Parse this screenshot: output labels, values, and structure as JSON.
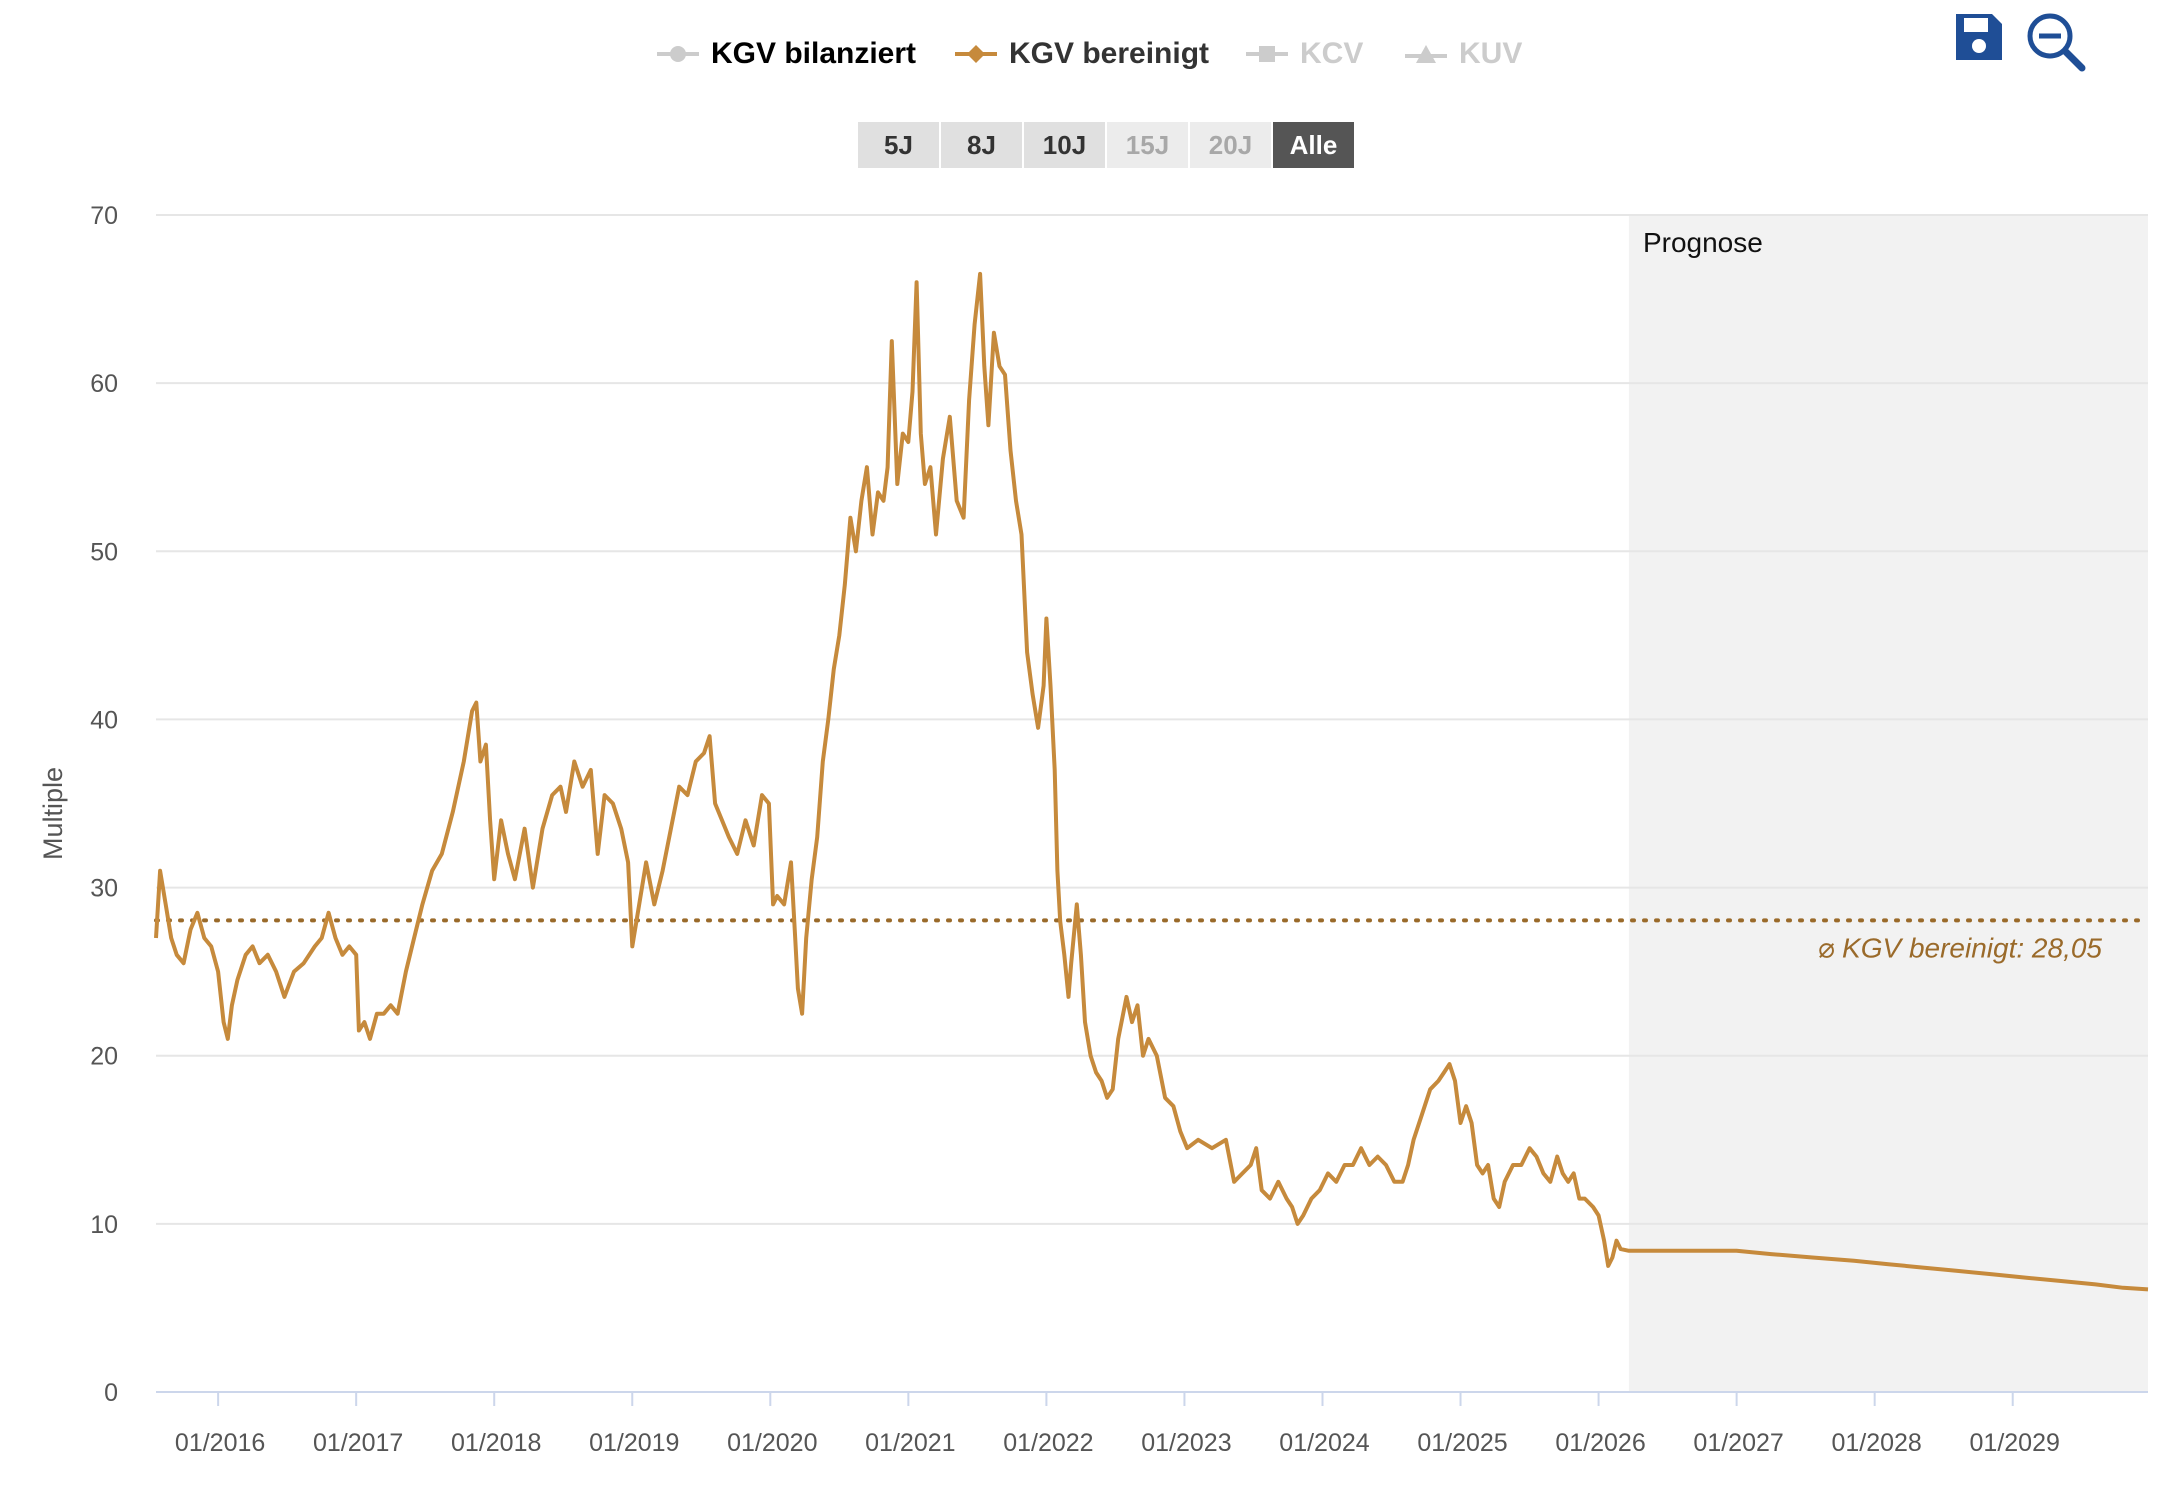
{
  "legend": [
    {
      "label": "KGV bilanziert",
      "state": "inactive",
      "icon": "circle-marker-icon"
    },
    {
      "label": "KGV bereinigt",
      "state": "active",
      "icon": "diamond-marker-icon"
    },
    {
      "label": "KCV",
      "state": "inactive",
      "icon": "square-marker-icon"
    },
    {
      "label": "KUV",
      "state": "inactive",
      "icon": "triangle-marker-icon"
    }
  ],
  "toolbar": {
    "save_icon": "floppy-disk-icon",
    "zoom_icon": "zoom-out-icon"
  },
  "range_buttons": [
    {
      "label": "5J",
      "state": "normal"
    },
    {
      "label": "8J",
      "state": "normal"
    },
    {
      "label": "10J",
      "state": "normal"
    },
    {
      "label": "15J",
      "state": "disabled"
    },
    {
      "label": "20J",
      "state": "disabled"
    },
    {
      "label": "Alle",
      "state": "selected"
    }
  ],
  "colors": {
    "series": "#c68a3c",
    "average": "#9a6a2a",
    "forecast_bg": "#f2f2f2",
    "grid": "#e6e6e6",
    "axis_text": "#555555",
    "button_blue": "#1f4e96"
  },
  "chart_data": {
    "type": "line",
    "title": "",
    "xlabel": "",
    "ylabel": "Multiple",
    "ylim": [
      0,
      70
    ],
    "yticks": [
      0,
      10,
      20,
      30,
      40,
      50,
      60,
      70
    ],
    "xlim": [
      2015.55,
      2029.98
    ],
    "xticks": [
      {
        "value": 2016,
        "label": "01/2016"
      },
      {
        "value": 2017,
        "label": "01/2017"
      },
      {
        "value": 2018,
        "label": "01/2018"
      },
      {
        "value": 2019,
        "label": "01/2019"
      },
      {
        "value": 2020,
        "label": "01/2020"
      },
      {
        "value": 2021,
        "label": "01/2021"
      },
      {
        "value": 2022,
        "label": "01/2022"
      },
      {
        "value": 2023,
        "label": "01/2023"
      },
      {
        "value": 2024,
        "label": "01/2024"
      },
      {
        "value": 2025,
        "label": "01/2025"
      },
      {
        "value": 2026,
        "label": "01/2026"
      },
      {
        "value": 2027,
        "label": "01/2027"
      },
      {
        "value": 2028,
        "label": "01/2028"
      },
      {
        "value": 2029,
        "label": "01/2029"
      }
    ],
    "forecast": {
      "start": 2026.22,
      "label": "Prognose"
    },
    "average": {
      "value": 28.05,
      "label": "⌀ KGV bereinigt: 28,05"
    },
    "series": [
      {
        "name": "KGV bereinigt",
        "points": [
          [
            2015.55,
            27
          ],
          [
            2015.58,
            31
          ],
          [
            2015.62,
            29
          ],
          [
            2015.66,
            27
          ],
          [
            2015.7,
            26
          ],
          [
            2015.75,
            25.5
          ],
          [
            2015.8,
            27.5
          ],
          [
            2015.85,
            28.5
          ],
          [
            2015.9,
            27
          ],
          [
            2015.95,
            26.5
          ],
          [
            2016.0,
            25
          ],
          [
            2016.04,
            22
          ],
          [
            2016.07,
            21
          ],
          [
            2016.1,
            23
          ],
          [
            2016.14,
            24.5
          ],
          [
            2016.2,
            26
          ],
          [
            2016.25,
            26.5
          ],
          [
            2016.3,
            25.5
          ],
          [
            2016.36,
            26
          ],
          [
            2016.42,
            25
          ],
          [
            2016.48,
            23.5
          ],
          [
            2016.55,
            25
          ],
          [
            2016.62,
            25.5
          ],
          [
            2016.7,
            26.5
          ],
          [
            2016.75,
            27
          ],
          [
            2016.8,
            28.5
          ],
          [
            2016.85,
            27
          ],
          [
            2016.9,
            26
          ],
          [
            2016.95,
            26.5
          ],
          [
            2017.0,
            26
          ],
          [
            2017.02,
            21.5
          ],
          [
            2017.06,
            22
          ],
          [
            2017.1,
            21
          ],
          [
            2017.15,
            22.5
          ],
          [
            2017.2,
            22.5
          ],
          [
            2017.25,
            23
          ],
          [
            2017.3,
            22.5
          ],
          [
            2017.36,
            25
          ],
          [
            2017.42,
            27
          ],
          [
            2017.48,
            29
          ],
          [
            2017.55,
            31
          ],
          [
            2017.62,
            32
          ],
          [
            2017.7,
            34.5
          ],
          [
            2017.78,
            37.5
          ],
          [
            2017.84,
            40.5
          ],
          [
            2017.87,
            41
          ],
          [
            2017.9,
            37.5
          ],
          [
            2017.94,
            38.5
          ],
          [
            2017.97,
            34
          ],
          [
            2018.0,
            30.5
          ],
          [
            2018.05,
            34
          ],
          [
            2018.1,
            32
          ],
          [
            2018.15,
            30.5
          ],
          [
            2018.22,
            33.5
          ],
          [
            2018.28,
            30
          ],
          [
            2018.35,
            33.5
          ],
          [
            2018.42,
            35.5
          ],
          [
            2018.48,
            36
          ],
          [
            2018.52,
            34.5
          ],
          [
            2018.58,
            37.5
          ],
          [
            2018.64,
            36
          ],
          [
            2018.7,
            37
          ],
          [
            2018.75,
            32
          ],
          [
            2018.8,
            35.5
          ],
          [
            2018.86,
            35
          ],
          [
            2018.92,
            33.5
          ],
          [
            2018.97,
            31.5
          ],
          [
            2019.0,
            26.5
          ],
          [
            2019.05,
            29
          ],
          [
            2019.1,
            31.5
          ],
          [
            2019.16,
            29
          ],
          [
            2019.22,
            31
          ],
          [
            2019.28,
            33.5
          ],
          [
            2019.34,
            36
          ],
          [
            2019.4,
            35.5
          ],
          [
            2019.46,
            37.5
          ],
          [
            2019.52,
            38
          ],
          [
            2019.56,
            39
          ],
          [
            2019.6,
            35
          ],
          [
            2019.65,
            34
          ],
          [
            2019.7,
            33
          ],
          [
            2019.76,
            32
          ],
          [
            2019.82,
            34
          ],
          [
            2019.88,
            32.5
          ],
          [
            2019.94,
            35.5
          ],
          [
            2019.99,
            35
          ],
          [
            2020.02,
            29
          ],
          [
            2020.05,
            29.5
          ],
          [
            2020.1,
            29
          ],
          [
            2020.15,
            31.5
          ],
          [
            2020.18,
            27
          ],
          [
            2020.2,
            24
          ],
          [
            2020.23,
            22.5
          ],
          [
            2020.26,
            27
          ],
          [
            2020.3,
            30.5
          ],
          [
            2020.34,
            33
          ],
          [
            2020.38,
            37.5
          ],
          [
            2020.42,
            40
          ],
          [
            2020.46,
            43
          ],
          [
            2020.5,
            45
          ],
          [
            2020.54,
            48
          ],
          [
            2020.58,
            52
          ],
          [
            2020.62,
            50
          ],
          [
            2020.66,
            53
          ],
          [
            2020.7,
            55
          ],
          [
            2020.74,
            51
          ],
          [
            2020.78,
            53.5
          ],
          [
            2020.82,
            53
          ],
          [
            2020.85,
            55
          ],
          [
            2020.88,
            62.5
          ],
          [
            2020.92,
            54
          ],
          [
            2020.96,
            57
          ],
          [
            2021.0,
            56.5
          ],
          [
            2021.03,
            59.5
          ],
          [
            2021.06,
            66
          ],
          [
            2021.09,
            57
          ],
          [
            2021.12,
            54
          ],
          [
            2021.16,
            55
          ],
          [
            2021.2,
            51
          ],
          [
            2021.25,
            55.5
          ],
          [
            2021.3,
            58
          ],
          [
            2021.35,
            53
          ],
          [
            2021.4,
            52
          ],
          [
            2021.44,
            59
          ],
          [
            2021.48,
            63.5
          ],
          [
            2021.52,
            66.5
          ],
          [
            2021.55,
            61
          ],
          [
            2021.58,
            57.5
          ],
          [
            2021.62,
            63
          ],
          [
            2021.66,
            61
          ],
          [
            2021.7,
            60.5
          ],
          [
            2021.74,
            56
          ],
          [
            2021.78,
            53
          ],
          [
            2021.82,
            51
          ],
          [
            2021.86,
            44
          ],
          [
            2021.9,
            41.5
          ],
          [
            2021.94,
            39.5
          ],
          [
            2021.98,
            42
          ],
          [
            2022.0,
            46
          ],
          [
            2022.03,
            42
          ],
          [
            2022.06,
            37
          ],
          [
            2022.08,
            31
          ],
          [
            2022.1,
            28
          ],
          [
            2022.13,
            26
          ],
          [
            2022.16,
            23.5
          ],
          [
            2022.18,
            25.5
          ],
          [
            2022.22,
            29
          ],
          [
            2022.25,
            26
          ],
          [
            2022.28,
            22
          ],
          [
            2022.32,
            20
          ],
          [
            2022.36,
            19
          ],
          [
            2022.4,
            18.5
          ],
          [
            2022.44,
            17.5
          ],
          [
            2022.48,
            18
          ],
          [
            2022.52,
            21
          ],
          [
            2022.58,
            23.5
          ],
          [
            2022.62,
            22
          ],
          [
            2022.66,
            23
          ],
          [
            2022.7,
            20
          ],
          [
            2022.74,
            21
          ],
          [
            2022.8,
            20
          ],
          [
            2022.86,
            17.5
          ],
          [
            2022.92,
            17
          ],
          [
            2022.97,
            15.5
          ],
          [
            2023.02,
            14.5
          ],
          [
            2023.1,
            15
          ],
          [
            2023.2,
            14.5
          ],
          [
            2023.3,
            15
          ],
          [
            2023.36,
            12.5
          ],
          [
            2023.42,
            13
          ],
          [
            2023.48,
            13.5
          ],
          [
            2023.52,
            14.5
          ],
          [
            2023.56,
            12
          ],
          [
            2023.62,
            11.5
          ],
          [
            2023.68,
            12.5
          ],
          [
            2023.74,
            11.5
          ],
          [
            2023.78,
            11
          ],
          [
            2023.82,
            10
          ],
          [
            2023.86,
            10.5
          ],
          [
            2023.92,
            11.5
          ],
          [
            2023.98,
            12
          ],
          [
            2024.04,
            13
          ],
          [
            2024.1,
            12.5
          ],
          [
            2024.16,
            13.5
          ],
          [
            2024.22,
            13.5
          ],
          [
            2024.28,
            14.5
          ],
          [
            2024.34,
            13.5
          ],
          [
            2024.4,
            14
          ],
          [
            2024.46,
            13.5
          ],
          [
            2024.52,
            12.5
          ],
          [
            2024.58,
            12.5
          ],
          [
            2024.62,
            13.5
          ],
          [
            2024.66,
            15
          ],
          [
            2024.72,
            16.5
          ],
          [
            2024.78,
            18
          ],
          [
            2024.84,
            18.5
          ],
          [
            2024.88,
            19
          ],
          [
            2024.92,
            19.5
          ],
          [
            2024.96,
            18.5
          ],
          [
            2025.0,
            16
          ],
          [
            2025.04,
            17
          ],
          [
            2025.08,
            16
          ],
          [
            2025.12,
            13.5
          ],
          [
            2025.16,
            13
          ],
          [
            2025.2,
            13.5
          ],
          [
            2025.24,
            11.5
          ],
          [
            2025.28,
            11
          ],
          [
            2025.32,
            12.5
          ],
          [
            2025.38,
            13.5
          ],
          [
            2025.44,
            13.5
          ],
          [
            2025.5,
            14.5
          ],
          [
            2025.55,
            14
          ],
          [
            2025.6,
            13
          ],
          [
            2025.65,
            12.5
          ],
          [
            2025.7,
            14
          ],
          [
            2025.74,
            13
          ],
          [
            2025.78,
            12.5
          ],
          [
            2025.82,
            13
          ],
          [
            2025.86,
            11.5
          ],
          [
            2025.9,
            11.5
          ],
          [
            2025.96,
            11
          ],
          [
            2026.0,
            10.5
          ],
          [
            2026.04,
            9
          ],
          [
            2026.07,
            7.5
          ],
          [
            2026.1,
            8
          ],
          [
            2026.13,
            9
          ],
          [
            2026.16,
            8.5
          ],
          [
            2026.22,
            8.4
          ],
          [
            2026.5,
            8.4
          ],
          [
            2026.78,
            8.4
          ],
          [
            2027.0,
            8.4
          ],
          [
            2027.25,
            8.2
          ],
          [
            2027.55,
            8.0
          ],
          [
            2027.85,
            7.8
          ],
          [
            2028.1,
            7.6
          ],
          [
            2028.35,
            7.4
          ],
          [
            2028.6,
            7.2
          ],
          [
            2028.85,
            7.0
          ],
          [
            2029.1,
            6.8
          ],
          [
            2029.35,
            6.6
          ],
          [
            2029.6,
            6.4
          ],
          [
            2029.8,
            6.2
          ],
          [
            2029.98,
            6.1
          ]
        ]
      }
    ]
  }
}
